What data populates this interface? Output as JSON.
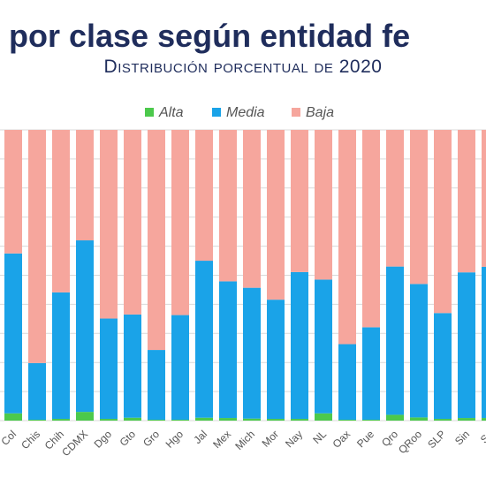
{
  "chart_data": {
    "type": "bar",
    "stacked": true,
    "title": "por clase según entidad fe",
    "subtitle": "Distribución porcentual de 2020",
    "legend_position": "top",
    "grid": true,
    "ylim": [
      0,
      100
    ],
    "categories": [
      "Col",
      "Chis",
      "Chih",
      "CDMX",
      "Dgo",
      "Gto",
      "Gro",
      "Hgo",
      "Jal",
      "Mex",
      "Mich",
      "Mor",
      "Nay",
      "NL",
      "Oax",
      "Pue",
      "Qro",
      "QRoo",
      "SLP",
      "Sin",
      "So"
    ],
    "series": [
      {
        "name": "Alta",
        "color": "#4cc94c",
        "values": [
          2.5,
          0.3,
          0.6,
          3.0,
          0.6,
          1.0,
          0.3,
          0.3,
          1.0,
          0.9,
          0.7,
          0.6,
          0.6,
          2.5,
          0.3,
          0.3,
          2.0,
          1.1,
          0.6,
          0.9,
          0.9
        ]
      },
      {
        "name": "Media",
        "color": "#1aa3e8",
        "values": [
          55,
          19.5,
          43.5,
          59,
          34.5,
          35.5,
          24,
          36,
          54,
          47,
          45,
          41,
          50.5,
          46,
          26,
          31.8,
          51,
          45.9,
          36.4,
          50.1,
          52
        ]
      },
      {
        "name": "Baja",
        "color": "#f6a69d",
        "values": [
          42.5,
          80.2,
          55.9,
          38,
          64.9,
          63.5,
          75.7,
          63.7,
          45,
          52.1,
          54.3,
          58.4,
          48.9,
          51.5,
          73.7,
          67.9,
          47,
          53,
          63,
          49,
          47.1
        ]
      }
    ]
  }
}
